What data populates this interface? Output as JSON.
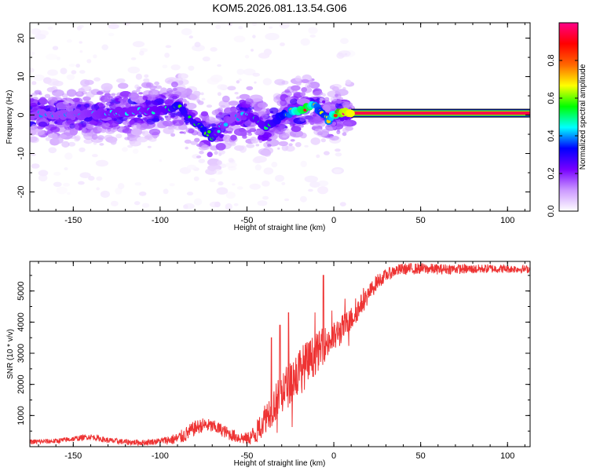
{
  "title": "KOM5.2026.081.13.54.G06",
  "chart_data": [
    {
      "type": "heatmap",
      "name": "spectrogram",
      "title": "KOM5.2026.081.13.54.G06",
      "xlabel": "Height of straight line (km)",
      "ylabel": "Frequency (Hz)",
      "xlim": [
        -175,
        113
      ],
      "ylim": [
        -25,
        24
      ],
      "xticks": [
        -150,
        -100,
        -50,
        0,
        50,
        100
      ],
      "yticks": [
        -20,
        -10,
        0,
        10,
        20
      ],
      "colorbar": {
        "label": "Normalized spectral amplitude",
        "range": [
          0,
          1
        ],
        "ticks": [
          "0.0",
          "0.2",
          "0.4",
          "0.6",
          "0.8"
        ],
        "colors": [
          "#ffffff",
          "#cc99ff",
          "#7700ff",
          "#0000ff",
          "#00ffff",
          "#00ff00",
          "#ffff00",
          "#ff6600",
          "#ff0000",
          "#ff0088"
        ]
      },
      "ridge": {
        "x": [
          -170,
          -150,
          -130,
          -110,
          -95,
          -90,
          -85,
          -80,
          -75,
          -70,
          -65,
          -60,
          -55,
          -50,
          -45,
          -40,
          -35,
          -30,
          -25,
          -20,
          -15,
          -12,
          -8,
          -5,
          -3,
          0,
          5,
          10,
          113
        ],
        "freq": [
          0,
          0,
          0.5,
          1,
          1.5,
          2.5,
          0,
          -2,
          -4,
          -6,
          -3,
          -1,
          -0.5,
          0,
          -1,
          -3,
          -2,
          0,
          0.5,
          1,
          2,
          3,
          1,
          -0.5,
          -1,
          0,
          1,
          0.5,
          0.5
        ],
        "amplitude": [
          0.25,
          0.25,
          0.3,
          0.3,
          0.35,
          0.45,
          0.4,
          0.4,
          0.45,
          0.4,
          0.3,
          0.25,
          0.25,
          0.3,
          0.35,
          0.35,
          0.4,
          0.45,
          0.55,
          0.7,
          0.8,
          0.6,
          0.5,
          0.5,
          0.55,
          0.65,
          0.9,
          0.95,
          0.95
        ]
      },
      "scatter_extent_km": [
        -175,
        10
      ]
    },
    {
      "type": "line",
      "name": "snr",
      "xlabel": "Height of straight line (km)",
      "ylabel": "SNR (10 * v/v)",
      "xlim": [
        -175,
        113
      ],
      "ylim": [
        0,
        5950
      ],
      "xticks": [
        -150,
        -100,
        -50,
        0,
        50,
        100
      ],
      "yticks": [
        1000,
        2000,
        3000,
        4000,
        5000
      ],
      "color": "#ee3333",
      "trend": {
        "x": [
          -175,
          -160,
          -150,
          -140,
          -130,
          -120,
          -110,
          -100,
          -90,
          -85,
          -80,
          -75,
          -70,
          -65,
          -60,
          -55,
          -50,
          -45,
          -40,
          -35,
          -30,
          -25,
          -20,
          -15,
          -10,
          -5,
          0,
          5,
          10,
          15,
          20,
          25,
          30,
          35,
          40,
          50,
          60,
          70,
          80,
          90,
          100,
          113
        ],
        "y": [
          150,
          180,
          250,
          320,
          200,
          150,
          130,
          180,
          250,
          400,
          600,
          700,
          650,
          550,
          400,
          300,
          250,
          400,
          900,
          1300,
          1700,
          2100,
          2400,
          2700,
          3000,
          3300,
          3500,
          3800,
          4100,
          4500,
          4900,
          5300,
          5500,
          5650,
          5700,
          5720,
          5700,
          5710,
          5700,
          5720,
          5710,
          5700
        ]
      },
      "noise": {
        "x": [
          -175,
          -100,
          -85,
          -60,
          -50,
          -40,
          -30,
          -20,
          -10,
          0,
          20,
          30,
          113
        ],
        "amplitude": [
          80,
          100,
          250,
          200,
          200,
          500,
          700,
          800,
          650,
          500,
          300,
          200,
          120
        ]
      },
      "spikes": [
        {
          "x": -6,
          "y": 5500
        },
        {
          "x": -26,
          "y": 4300
        },
        {
          "x": -31,
          "y": 3900
        },
        {
          "x": -36,
          "y": 3500
        }
      ]
    }
  ]
}
